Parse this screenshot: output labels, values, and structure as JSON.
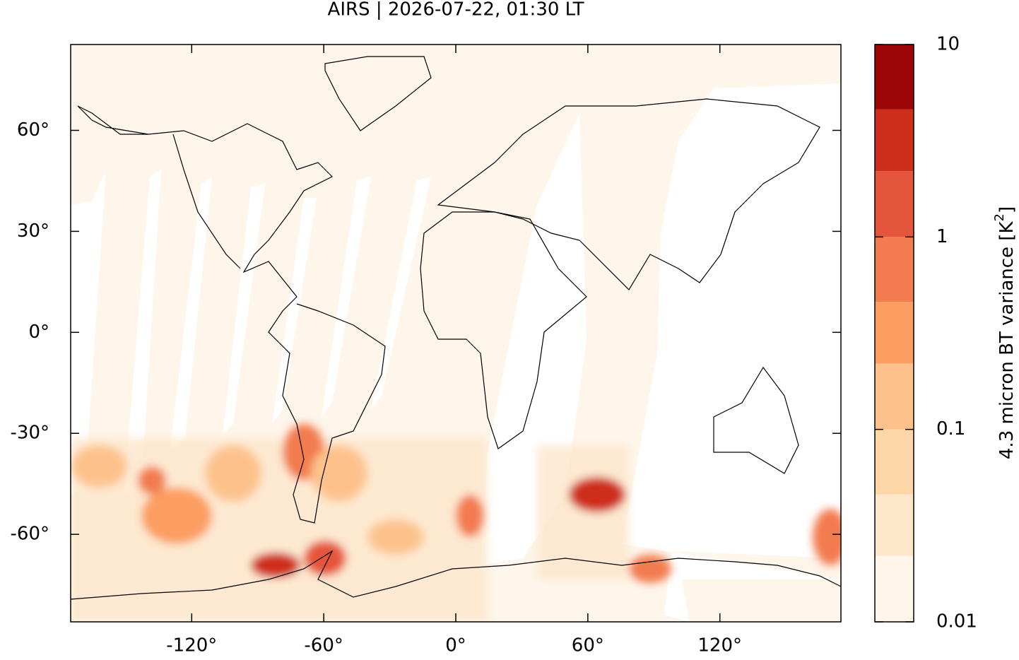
{
  "chart_data": {
    "type": "map",
    "title": "AIRS | 2026-07-22, 01:30 LT",
    "xlim": [
      -175,
      175
    ],
    "ylim": [
      -86,
      85.5
    ],
    "xticks": [
      {
        "value": -120,
        "label": "-120°"
      },
      {
        "value": -60,
        "label": "-60°"
      },
      {
        "value": 0,
        "label": "0°"
      },
      {
        "value": 60,
        "label": "60°"
      },
      {
        "value": 120,
        "label": "120°"
      }
    ],
    "yticks": [
      {
        "value": 60,
        "label": "60°"
      },
      {
        "value": 30,
        "label": "30°"
      },
      {
        "value": 0,
        "label": "0°"
      },
      {
        "value": -30,
        "label": "-30°"
      },
      {
        "value": -60,
        "label": "-60°"
      }
    ],
    "colorbar": {
      "label": "4.3 micron BT variance [K",
      "label_sup": "2",
      "label_end": "]",
      "scale": "log",
      "lim": [
        0.01,
        10
      ],
      "ticks": [
        10,
        1,
        0.1,
        0.01
      ],
      "levels": [
        0.01,
        0.022,
        0.046,
        0.1,
        0.22,
        0.46,
        1,
        2.2,
        4.6,
        10
      ],
      "colors": [
        "#fff5eb",
        "#fee6cb",
        "#fdd7a8",
        "#fdc28c",
        "#fc9e62",
        "#f27c4f",
        "#e5553b",
        "#ce2f1d",
        "#9c0606"
      ]
    }
  }
}
